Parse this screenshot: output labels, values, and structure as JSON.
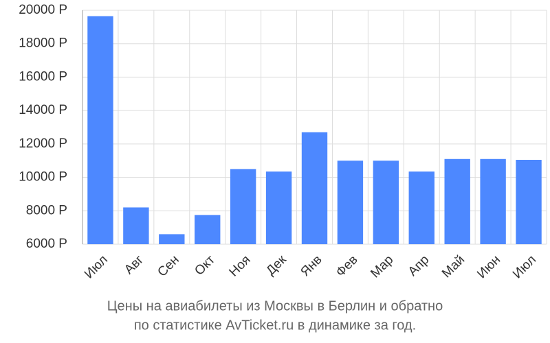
{
  "chart_data": {
    "type": "bar",
    "title_lines": [
      "Цены на авиабилеты из Москвы в Берлин и обратно",
      "по статистике AvTicket.ru в динамике за год."
    ],
    "categories": [
      "Июл",
      "Авг",
      "Сен",
      "Окт",
      "Ноя",
      "Дек",
      "Янв",
      "Фев",
      "Мар",
      "Апр",
      "Май",
      "Июн",
      "Июл"
    ],
    "values": [
      19650,
      8200,
      6600,
      7750,
      10500,
      10350,
      12700,
      11000,
      11000,
      10350,
      11100,
      11100,
      11050
    ],
    "color": "#4d88ff",
    "ylim": [
      6000,
      20000
    ],
    "yticks": [
      {
        "value": 6000,
        "label": "6000 Р"
      },
      {
        "value": 8000,
        "label": "8000 Р"
      },
      {
        "value": 10000,
        "label": "10000 Р"
      },
      {
        "value": 12000,
        "label": "12000 Р"
      },
      {
        "value": 14000,
        "label": "14000 Р"
      },
      {
        "value": 16000,
        "label": "16000 Р"
      },
      {
        "value": 18000,
        "label": "18000 Р"
      },
      {
        "value": 20000,
        "label": "20000 Р"
      }
    ],
    "grid": true
  }
}
